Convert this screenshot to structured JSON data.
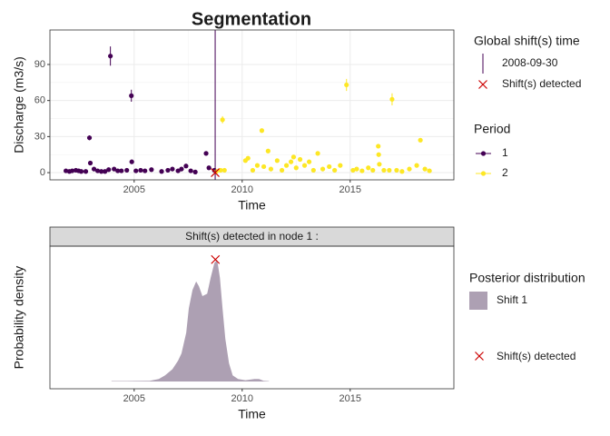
{
  "chart_data": [
    {
      "type": "scatter",
      "title": "Segmentation",
      "xlabel": "Time",
      "ylabel": "Discharge (m3/s)",
      "xlim": [
        2001.1,
        2019.8
      ],
      "ylim": [
        -6,
        118.7
      ],
      "xticks": [
        2005,
        2010,
        2015
      ],
      "yticks": [
        0,
        30,
        60,
        90
      ],
      "grid": true,
      "legend_position": "right",
      "legend_title": "Period",
      "series": [
        {
          "name": "1",
          "color": "#440154",
          "x": [
            2001.84,
            2002.0,
            2002.13,
            2002.3,
            2002.43,
            2002.55,
            2002.76,
            2002.93,
            2002.97,
            2003.14,
            2003.31,
            2003.48,
            2003.65,
            2003.82,
            2003.9,
            2004.07,
            2004.24,
            2004.41,
            2004.66,
            2004.87,
            2004.89,
            2005.08,
            2005.3,
            2005.5,
            2005.8,
            2006.27,
            2006.56,
            2006.77,
            2007.03,
            2007.19,
            2007.4,
            2007.62,
            2007.83,
            2008.33,
            2008.46,
            2008.71
          ],
          "values": [
            1.5,
            1,
            1.5,
            2,
            1.5,
            1,
            1,
            29,
            8,
            3,
            1.5,
            1,
            1,
            2.5,
            97,
            3,
            1.5,
            1.5,
            2,
            64,
            9,
            1.5,
            2,
            1.5,
            2.5,
            1,
            2,
            3,
            1.5,
            3,
            5.5,
            1.5,
            0.5,
            16,
            4,
            2
          ],
          "errors": [
            0.5,
            0.5,
            0.5,
            0.5,
            0.5,
            0.5,
            0.5,
            2,
            0.8,
            0.5,
            0.5,
            0.5,
            0.5,
            0.5,
            8,
            0.5,
            0.5,
            0.5,
            0.5,
            5,
            0.8,
            0.5,
            0.5,
            0.5,
            0.5,
            0.5,
            0.5,
            0.5,
            0.5,
            0.5,
            0.6,
            0.5,
            0.5,
            1,
            0.5,
            0.5
          ]
        },
        {
          "name": "2",
          "color": "#FDE725",
          "x": [
            2008.8,
            2009.0,
            2009.09,
            2009.18,
            2010.15,
            2010.27,
            2010.49,
            2010.7,
            2010.91,
            2011.0,
            2011.2,
            2011.33,
            2011.62,
            2011.84,
            2012.05,
            2012.26,
            2012.38,
            2012.5,
            2012.68,
            2012.89,
            2013.1,
            2013.3,
            2013.5,
            2013.73,
            2014.03,
            2014.28,
            2014.54,
            2014.83,
            2015.13,
            2015.3,
            2015.55,
            2015.84,
            2016.05,
            2016.3,
            2016.32,
            2016.35,
            2016.56,
            2016.81,
            2016.94,
            2017.15,
            2017.4,
            2017.74,
            2018.08,
            2018.25,
            2018.46,
            2018.67
          ],
          "values": [
            1,
            2,
            44,
            2,
            10,
            12,
            2,
            6,
            35,
            5,
            18,
            3,
            10,
            2,
            6,
            9,
            13,
            4,
            11,
            6,
            9,
            2,
            16,
            3,
            5,
            2,
            6,
            73,
            2,
            3,
            1.5,
            4,
            2,
            22,
            15,
            7,
            2,
            2,
            61,
            2,
            1,
            3,
            6,
            27,
            3,
            1.5
          ],
          "errors": [
            0.5,
            0.5,
            3,
            0.5,
            0.8,
            0.8,
            0.5,
            0.6,
            1,
            0.5,
            1,
            0.5,
            0.8,
            0.5,
            0.6,
            0.8,
            0.8,
            0.5,
            0.8,
            0.6,
            0.8,
            0.5,
            1,
            0.5,
            0.6,
            0.5,
            0.6,
            5,
            0.5,
            0.5,
            0.5,
            0.5,
            0.5,
            1,
            1,
            0.6,
            0.5,
            0.5,
            5,
            0.5,
            0.5,
            0.5,
            0.6,
            1,
            0.5,
            0.5
          ]
        }
      ],
      "shift": {
        "legend_title": "Global shift(s) time",
        "label": "2008-09-30",
        "x": 2008.75,
        "color": "#440154"
      },
      "shift_marker": {
        "label": "Shift(s) detected",
        "x": 2008.75,
        "y": 0,
        "color": "#cc0000"
      }
    },
    {
      "type": "area",
      "strip": "Shift(s) detected in node 1 :",
      "xlabel": "Time",
      "ylabel": "Probability density",
      "xlim": [
        2001.1,
        2019.8
      ],
      "ylim": [
        -0.06,
        1.11
      ],
      "xticks": [
        2005,
        2010,
        2015
      ],
      "legend_position": "right",
      "legend_title": "Posterior distribution",
      "series": [
        {
          "name": "Shift 1",
          "color": "#ada0b3",
          "x": [
            2003.95,
            2004.66,
            2005.08,
            2005.72,
            2006.14,
            2006.43,
            2006.77,
            2007.03,
            2007.19,
            2007.41,
            2007.53,
            2007.7,
            2007.87,
            2008.0,
            2008.16,
            2008.38,
            2008.54,
            2008.71,
            2008.84,
            2008.97,
            2009.09,
            2009.22,
            2009.39,
            2009.56,
            2009.81,
            2010.15,
            2010.57,
            2010.78,
            2010.99,
            2011.24
          ],
          "values": [
            0.003,
            0.003,
            0.004,
            0.005,
            0.02,
            0.05,
            0.1,
            0.17,
            0.23,
            0.4,
            0.6,
            0.75,
            0.82,
            0.78,
            0.7,
            0.72,
            0.85,
            0.97,
            1.0,
            0.85,
            0.6,
            0.35,
            0.15,
            0.05,
            0.02,
            0.01,
            0.02,
            0.02,
            0.005,
            0.002
          ]
        }
      ],
      "shift_marker": {
        "label": "Shift(s) detected",
        "x": 2008.76,
        "y": 1.0,
        "color": "#cc0000"
      }
    }
  ]
}
